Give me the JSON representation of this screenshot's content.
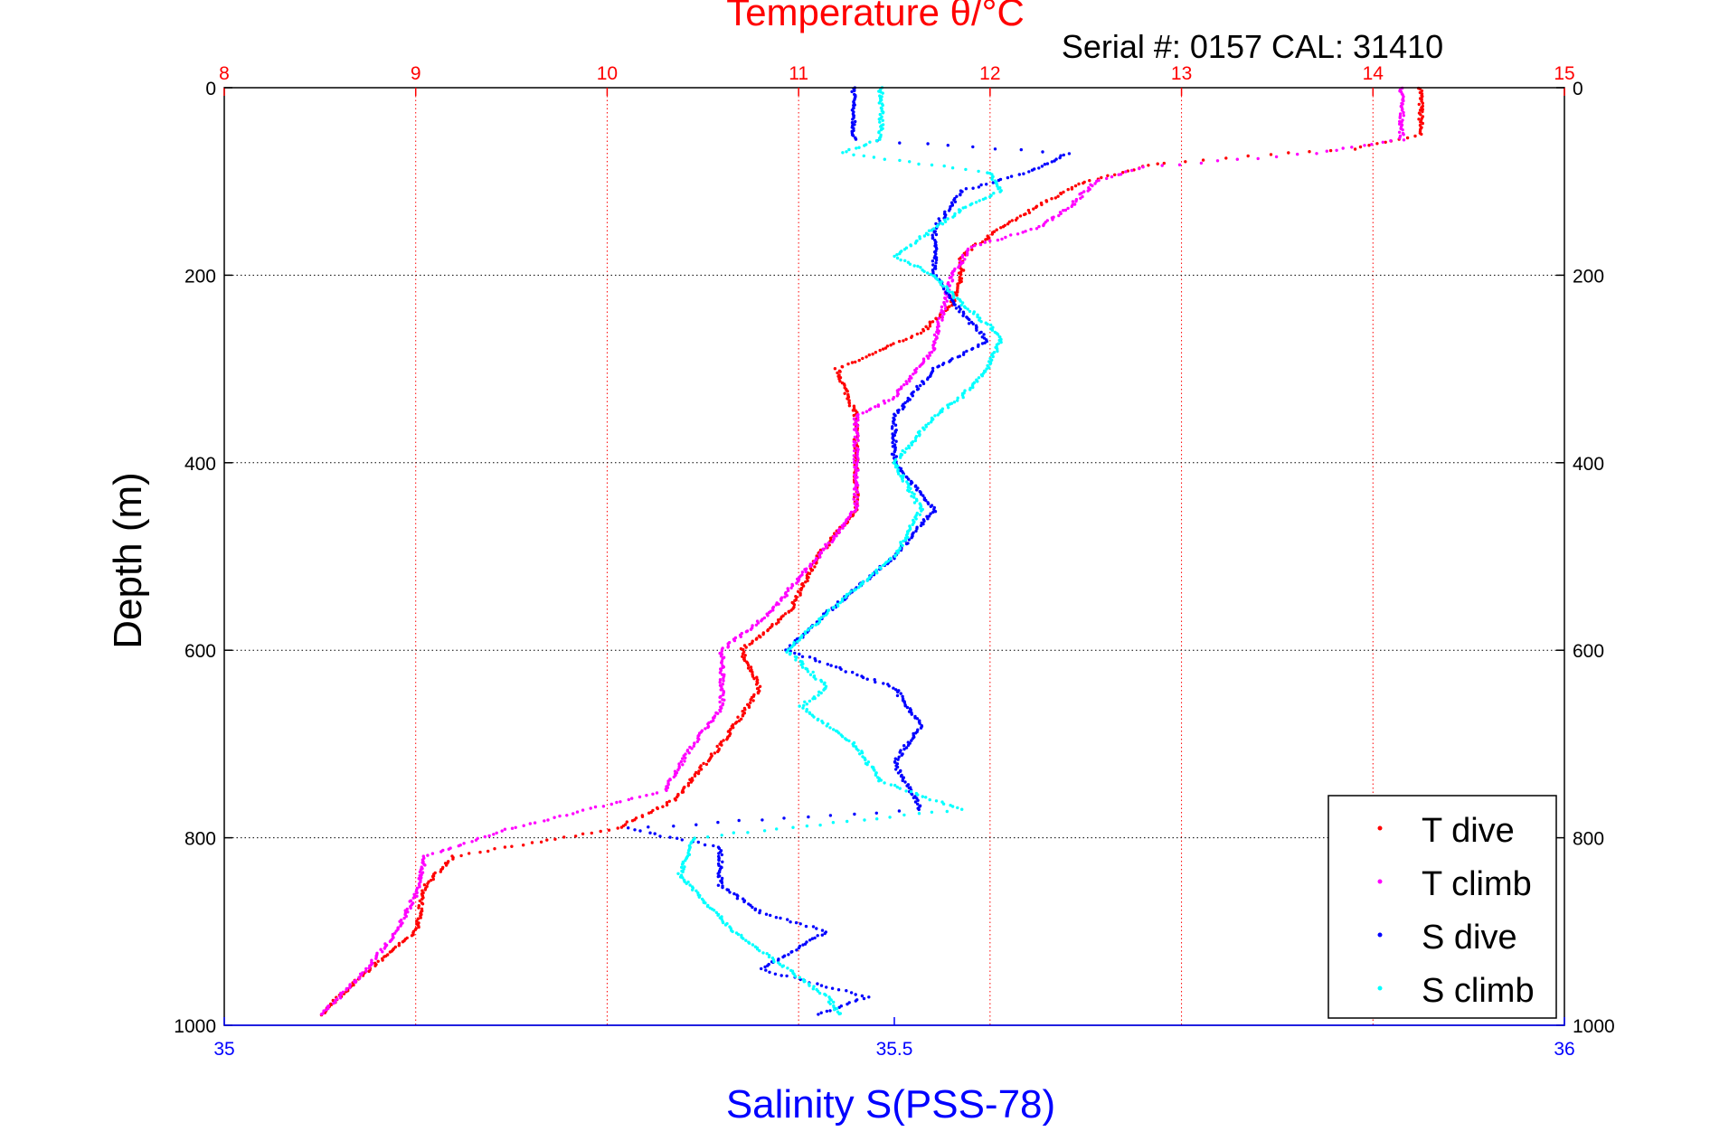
{
  "chart_data": {
    "type": "scatter",
    "title": "Temperature θ/°C",
    "subtitle": "Serial #: 0157  CAL: 31410",
    "xlabel": "Salinity S(PSS-78)",
    "ylabel": "Depth (m)",
    "ylim": [
      0,
      1000
    ],
    "y_reversed": true,
    "yticks": [
      "0",
      "200",
      "400",
      "600",
      "800",
      "1000"
    ],
    "x_top": {
      "label": "Temperature θ/°C",
      "range": [
        8,
        15
      ],
      "ticks": [
        "8",
        "9",
        "10",
        "11",
        "12",
        "13",
        "14",
        "15"
      ],
      "color": "#ff0000"
    },
    "x_bottom": {
      "label": "Salinity S(PSS-78)",
      "range": [
        35,
        36
      ],
      "ticks": [
        "35",
        "35.5",
        "36"
      ],
      "color": "#0000ff"
    },
    "grid": true,
    "legend_position": "bottom-right",
    "series": [
      {
        "name": "T dive",
        "axis": "temperature",
        "color": "#ff0000",
        "depth": [
          0,
          50,
          65,
          80,
          100,
          120,
          150,
          180,
          200,
          230,
          260,
          300,
          350,
          400,
          450,
          500,
          560,
          600,
          640,
          700,
          760,
          790,
          820,
          850,
          900,
          950,
          990
        ],
        "values": [
          14.25,
          14.25,
          13.9,
          12.9,
          12.5,
          12.3,
          12.05,
          11.85,
          11.85,
          11.8,
          11.65,
          11.2,
          11.3,
          11.3,
          11.3,
          11.1,
          10.95,
          10.7,
          10.8,
          10.6,
          10.35,
          10.05,
          9.2,
          9.05,
          9.0,
          8.7,
          8.5
        ]
      },
      {
        "name": "T climb",
        "axis": "temperature",
        "color": "#ff00ff",
        "depth": [
          0,
          55,
          70,
          85,
          100,
          130,
          150,
          170,
          200,
          240,
          280,
          330,
          350,
          400,
          450,
          500,
          560,
          600,
          660,
          700,
          750,
          790,
          820,
          860,
          900,
          950,
          990
        ],
        "values": [
          14.15,
          14.15,
          13.7,
          12.8,
          12.55,
          12.4,
          12.25,
          11.9,
          11.8,
          11.75,
          11.7,
          11.5,
          11.3,
          11.3,
          11.3,
          11.1,
          10.85,
          10.6,
          10.6,
          10.45,
          10.3,
          9.5,
          9.05,
          9.0,
          8.9,
          8.7,
          8.5
        ]
      },
      {
        "name": "S dive",
        "axis": "salinity",
        "color": "#0000ff",
        "depth": [
          0,
          55,
          70,
          90,
          110,
          150,
          200,
          240,
          270,
          300,
          350,
          400,
          450,
          500,
          560,
          600,
          640,
          680,
          720,
          770,
          790,
          810,
          850,
          880,
          900,
          940,
          970,
          990
        ],
        "values": [
          35.47,
          35.47,
          35.63,
          35.6,
          35.55,
          35.53,
          35.53,
          35.55,
          35.57,
          35.53,
          35.5,
          35.5,
          35.53,
          35.5,
          35.45,
          35.42,
          35.5,
          35.52,
          35.5,
          35.52,
          35.3,
          35.37,
          35.37,
          35.4,
          35.45,
          35.4,
          35.48,
          35.44
        ]
      },
      {
        "name": "S climb",
        "axis": "salinity",
        "color": "#00ffff",
        "depth": [
          0,
          55,
          70,
          90,
          110,
          130,
          150,
          180,
          200,
          230,
          265,
          300,
          330,
          350,
          400,
          450,
          500,
          560,
          600,
          640,
          660,
          700,
          740,
          770,
          800,
          840,
          870,
          900,
          930,
          970,
          990
        ],
        "values": [
          35.49,
          35.49,
          35.46,
          35.57,
          35.58,
          35.55,
          35.53,
          35.5,
          35.53,
          35.55,
          35.58,
          35.57,
          35.55,
          35.53,
          35.5,
          35.52,
          35.5,
          35.45,
          35.42,
          35.45,
          35.43,
          35.47,
          35.49,
          35.55,
          35.35,
          35.34,
          35.36,
          35.38,
          35.41,
          35.45,
          35.46
        ]
      }
    ]
  }
}
